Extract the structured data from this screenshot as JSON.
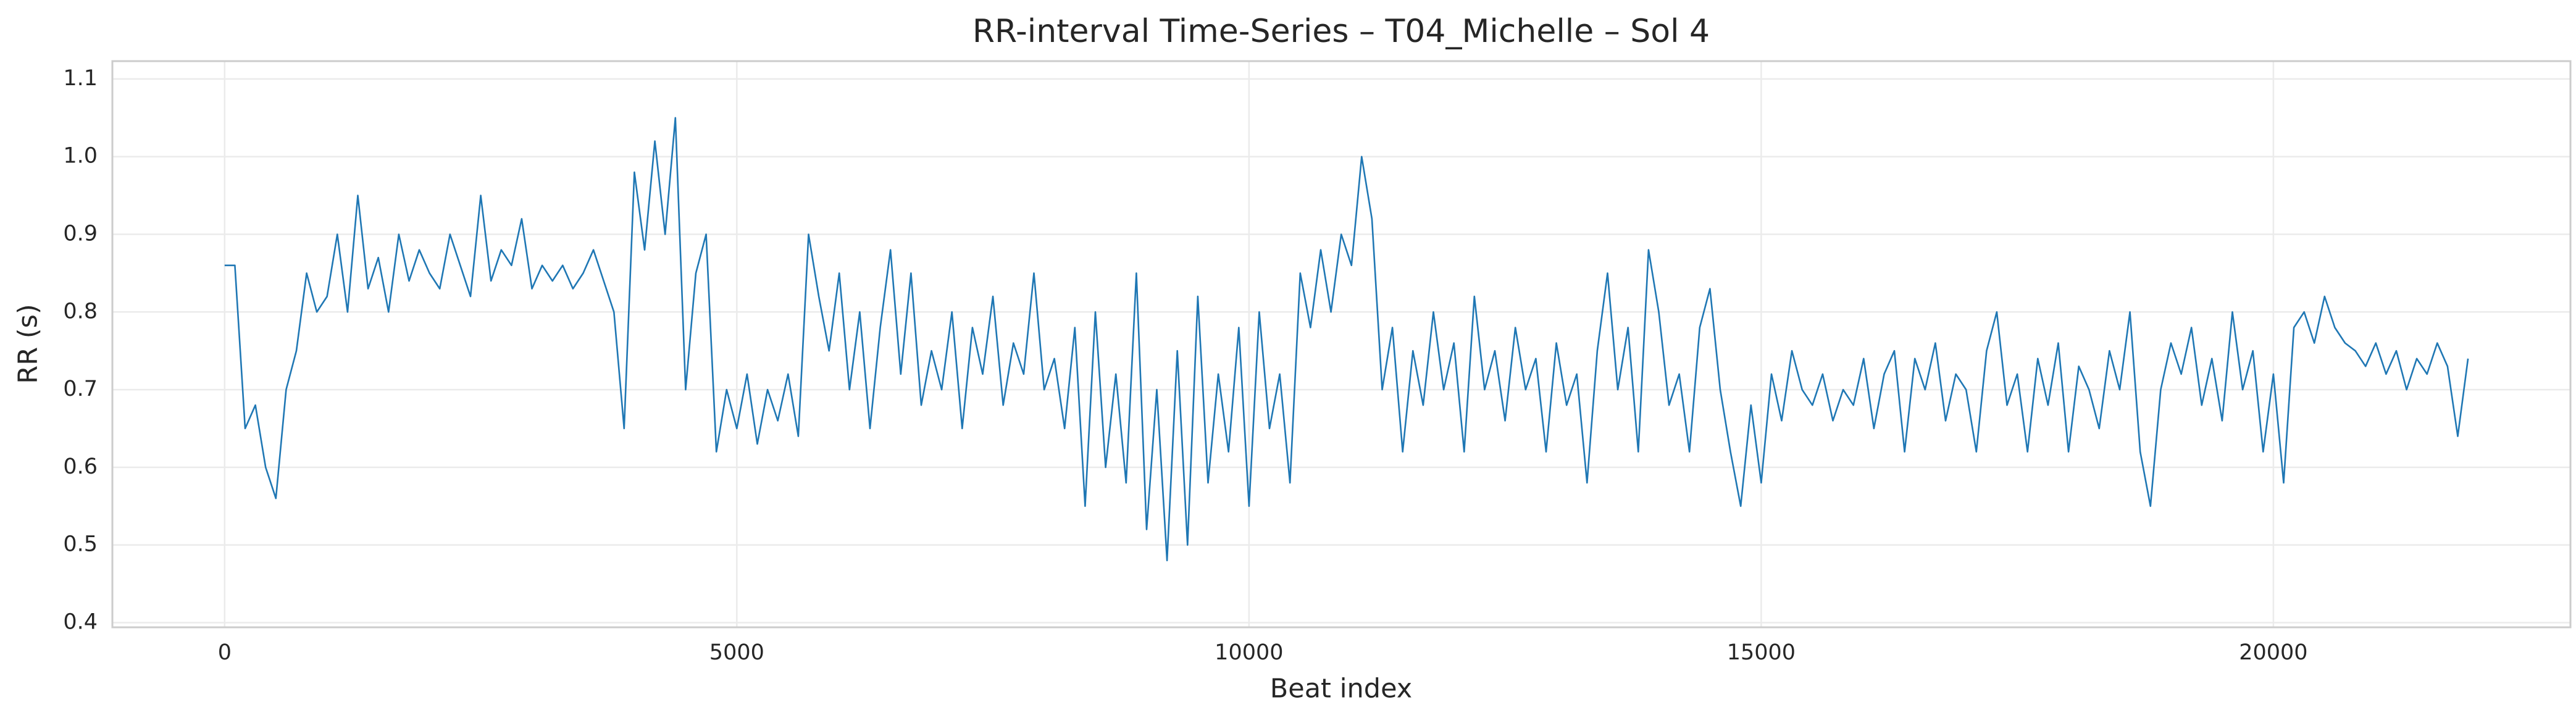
{
  "chart_data": {
    "type": "line",
    "title": "RR-interval Time-Series – T04_Michelle – Sol 4",
    "x_label": "Beat index",
    "y_label": "RR (s)",
    "color": "#1f77b4",
    "grid": true,
    "xlim": [
      -1096,
      22900
    ],
    "ylim": [
      0.394,
      1.123
    ],
    "xticks": [
      0,
      5000,
      10000,
      15000,
      20000
    ],
    "yticks": [
      0.4,
      0.5,
      0.6,
      0.7,
      0.8,
      0.9,
      {
        "value": 1,
        "label": "1.0"
      },
      1.1
    ],
    "x": [
      0,
      100,
      200,
      300,
      400,
      500,
      600,
      700,
      800,
      900,
      1000,
      1100,
      1200,
      1300,
      1400,
      1500,
      1600,
      1700,
      1800,
      1900,
      2000,
      2100,
      2200,
      2300,
      2400,
      2500,
      2600,
      2700,
      2800,
      2900,
      3000,
      3100,
      3200,
      3300,
      3400,
      3500,
      3600,
      3700,
      3800,
      3900,
      4000,
      4100,
      4200,
      4300,
      4400,
      4500,
      4600,
      4700,
      4800,
      4900,
      5000,
      5100,
      5200,
      5300,
      5400,
      5500,
      5600,
      5700,
      5800,
      5900,
      6000,
      6100,
      6200,
      6300,
      6400,
      6500,
      6600,
      6700,
      6800,
      6900,
      7000,
      7100,
      7200,
      7300,
      7400,
      7500,
      7600,
      7700,
      7800,
      7900,
      8000,
      8100,
      8200,
      8300,
      8400,
      8500,
      8600,
      8700,
      8800,
      8900,
      9000,
      9100,
      9200,
      9300,
      9400,
      9500,
      9600,
      9700,
      9800,
      9900,
      10000,
      10100,
      10200,
      10300,
      10400,
      10500,
      10600,
      10700,
      10800,
      10900,
      11000,
      11100,
      11200,
      11300,
      11400,
      11500,
      11600,
      11700,
      11800,
      11900,
      12000,
      12100,
      12200,
      12300,
      12400,
      12500,
      12600,
      12700,
      12800,
      12900,
      13000,
      13100,
      13200,
      13300,
      13400,
      13500,
      13600,
      13700,
      13800,
      13900,
      14000,
      14100,
      14200,
      14300,
      14400,
      14500,
      14600,
      14700,
      14800,
      14900,
      15000,
      15100,
      15200,
      15300,
      15400,
      15500,
      15600,
      15700,
      15800,
      15900,
      16000,
      16100,
      16200,
      16300,
      16400,
      16500,
      16600,
      16700,
      16800,
      16900,
      17000,
      17100,
      17200,
      17300,
      17400,
      17500,
      17600,
      17700,
      17800,
      17900,
      18000,
      18100,
      18200,
      18300,
      18400,
      18500,
      18600,
      18700,
      18800,
      18900,
      19000,
      19100,
      19200,
      19300,
      19400,
      19500,
      19600,
      19700,
      19800,
      19900,
      20000,
      20100,
      20200,
      20300,
      20400,
      20500,
      20600,
      20700,
      20800,
      20900,
      21000,
      21100,
      21200,
      21300,
      21400,
      21500,
      21600,
      21700,
      21800,
      21900
    ],
    "values": [
      0.86,
      0.86,
      0.65,
      0.68,
      0.6,
      0.56,
      0.7,
      0.75,
      0.85,
      0.8,
      0.82,
      0.9,
      0.8,
      0.95,
      0.83,
      0.87,
      0.8,
      0.9,
      0.84,
      0.88,
      0.85,
      0.83,
      0.9,
      0.86,
      0.82,
      0.95,
      0.84,
      0.88,
      0.86,
      0.92,
      0.83,
      0.86,
      0.84,
      0.86,
      0.83,
      0.85,
      0.88,
      0.84,
      0.8,
      0.65,
      0.98,
      0.88,
      1.02,
      0.9,
      1.05,
      0.7,
      0.85,
      0.9,
      0.62,
      0.7,
      0.65,
      0.72,
      0.63,
      0.7,
      0.66,
      0.72,
      0.64,
      0.9,
      0.82,
      0.75,
      0.85,
      0.7,
      0.8,
      0.65,
      0.78,
      0.88,
      0.72,
      0.85,
      0.68,
      0.75,
      0.7,
      0.8,
      0.65,
      0.78,
      0.72,
      0.82,
      0.68,
      0.76,
      0.72,
      0.85,
      0.7,
      0.74,
      0.65,
      0.78,
      0.55,
      0.8,
      0.6,
      0.72,
      0.58,
      0.85,
      0.52,
      0.7,
      0.48,
      0.75,
      0.5,
      0.82,
      0.58,
      0.72,
      0.62,
      0.78,
      0.55,
      0.8,
      0.65,
      0.72,
      0.58,
      0.85,
      0.78,
      0.88,
      0.8,
      0.9,
      0.86,
      1.0,
      0.92,
      0.7,
      0.78,
      0.62,
      0.75,
      0.68,
      0.8,
      0.7,
      0.76,
      0.62,
      0.82,
      0.7,
      0.75,
      0.66,
      0.78,
      0.7,
      0.74,
      0.62,
      0.76,
      0.68,
      0.72,
      0.58,
      0.75,
      0.85,
      0.7,
      0.78,
      0.62,
      0.88,
      0.8,
      0.68,
      0.72,
      0.62,
      0.78,
      0.83,
      0.7,
      0.62,
      0.55,
      0.68,
      0.58,
      0.72,
      0.66,
      0.75,
      0.7,
      0.68,
      0.72,
      0.66,
      0.7,
      0.68,
      0.74,
      0.65,
      0.72,
      0.75,
      0.62,
      0.74,
      0.7,
      0.76,
      0.66,
      0.72,
      0.7,
      0.62,
      0.75,
      0.8,
      0.68,
      0.72,
      0.62,
      0.74,
      0.68,
      0.76,
      0.62,
      0.73,
      0.7,
      0.65,
      0.75,
      0.7,
      0.8,
      0.62,
      0.55,
      0.7,
      0.76,
      0.72,
      0.78,
      0.68,
      0.74,
      0.66,
      0.8,
      0.7,
      0.75,
      0.62,
      0.72,
      0.58,
      0.78,
      0.8,
      0.76,
      0.82,
      0.78,
      0.76,
      0.75,
      0.73,
      0.76,
      0.72,
      0.75,
      0.7,
      0.74,
      0.72,
      0.76,
      0.73,
      0.64,
      0.74
    ]
  }
}
